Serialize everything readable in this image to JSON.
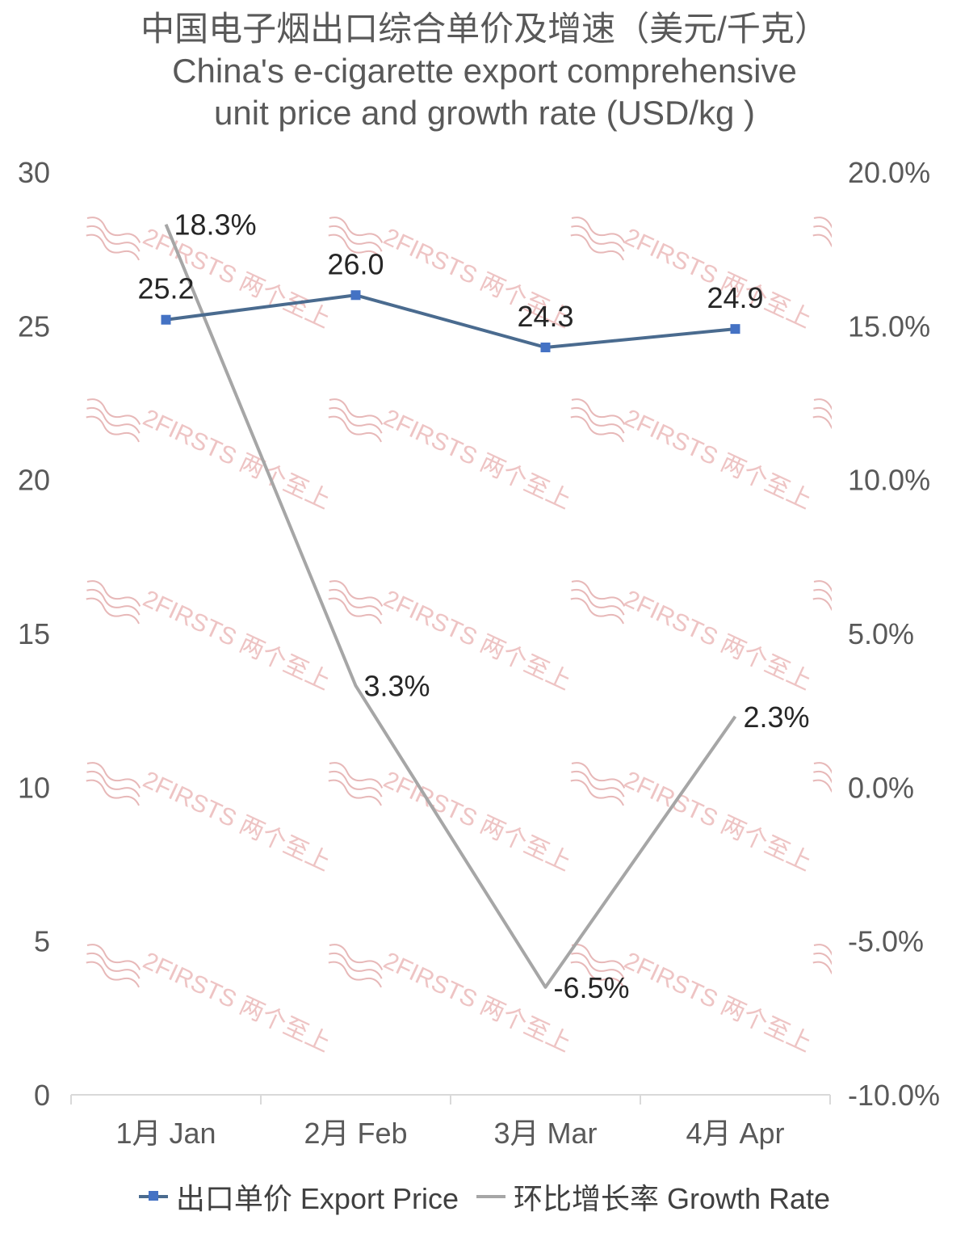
{
  "title": {
    "line1": "中国电子烟出口综合单价及增速（美元/千克）",
    "line2": "China's e-cigarette export comprehensive",
    "line3": "unit price and growth rate (USD/kg )"
  },
  "watermark": {
    "text": "2FIRSTS 两个至上"
  },
  "chart_data": {
    "type": "line",
    "categories": [
      "1月 Jan",
      "2月 Feb",
      "3月 Mar",
      "4月 Apr"
    ],
    "series": [
      {
        "name": "出口单价 Export Price",
        "axis": "left",
        "color": "#4a6b8f",
        "marker_color": "#4472c4",
        "values": [
          25.2,
          26.0,
          24.3,
          24.9
        ],
        "labels": [
          "25.2",
          "26.0",
          "24.3",
          "24.9"
        ]
      },
      {
        "name": "环比增长率 Growth Rate",
        "axis": "right",
        "color": "#a6a6a6",
        "values": [
          18.3,
          3.3,
          -6.5,
          2.3
        ],
        "labels": [
          "18.3%",
          "3.3%",
          "-6.5%",
          "2.3%"
        ]
      }
    ],
    "y_left": {
      "min": 0,
      "max": 30,
      "ticks": [
        "0",
        "5",
        "10",
        "15",
        "20",
        "25",
        "30"
      ]
    },
    "y_right": {
      "min": -10,
      "max": 20,
      "ticks": [
        "-10.0%",
        "-5.0%",
        "0.0%",
        "5.0%",
        "10.0%",
        "15.0%",
        "20.0%"
      ]
    },
    "grid": false,
    "legend_position": "bottom"
  }
}
